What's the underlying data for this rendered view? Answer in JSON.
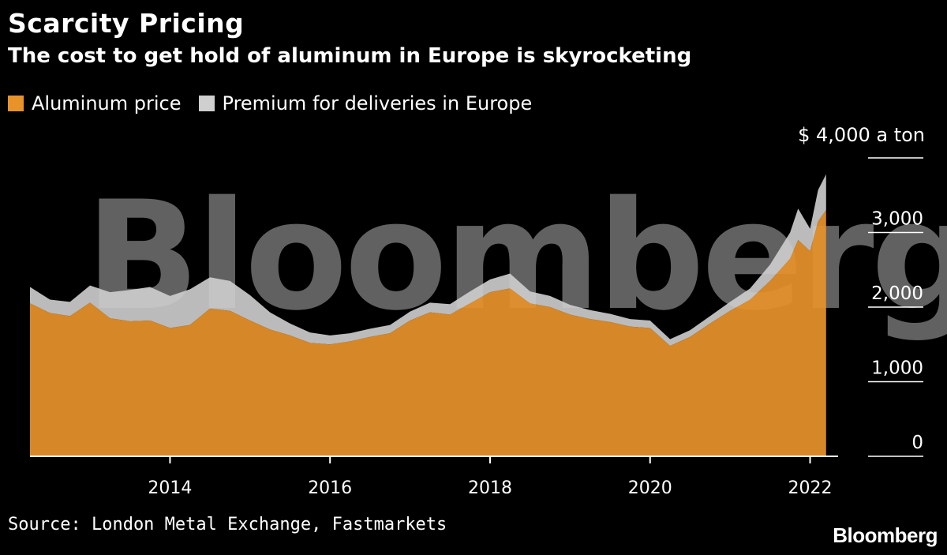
{
  "header": {
    "title": "Scarcity Pricing",
    "subtitle": "The cost to get hold of aluminum in Europe is skyrocketing"
  },
  "footer": {
    "source": "Source: London Metal Exchange, Fastmarkets",
    "logo": "Bloomberg"
  },
  "colors": {
    "background": "#000000",
    "aluminum": "#e8922a",
    "premium": "#cfcfcf",
    "axis": "#ffffff"
  },
  "chart_data": {
    "type": "area",
    "stacked": true,
    "watermark": "Bloomberg",
    "y_unit_label": "$ 4,000 a ton",
    "ylim": [
      0,
      4000
    ],
    "xlim": [
      2012.25,
      2022.35
    ],
    "y_ticks": [
      {
        "value": 0,
        "label": "0"
      },
      {
        "value": 1000,
        "label": "1,000"
      },
      {
        "value": 2000,
        "label": "2,000"
      },
      {
        "value": 3000,
        "label": "3,000"
      },
      {
        "value": 4000,
        "label": ""
      }
    ],
    "x_ticks": [
      {
        "value": 2014,
        "label": "2014"
      },
      {
        "value": 2016,
        "label": "2016"
      },
      {
        "value": 2018,
        "label": "2018"
      },
      {
        "value": 2020,
        "label": "2020"
      },
      {
        "value": 2022,
        "label": "2022"
      }
    ],
    "legend": [
      "Aluminum price",
      "Premium for deliveries in Europe"
    ],
    "legend_position": "top-left",
    "x": [
      2012.25,
      2012.5,
      2012.75,
      2013.0,
      2013.25,
      2013.5,
      2013.75,
      2014.0,
      2014.25,
      2014.5,
      2014.75,
      2015.0,
      2015.25,
      2015.5,
      2015.75,
      2016.0,
      2016.25,
      2016.5,
      2016.75,
      2017.0,
      2017.25,
      2017.5,
      2017.75,
      2018.0,
      2018.25,
      2018.5,
      2018.75,
      2019.0,
      2019.25,
      2019.5,
      2019.75,
      2020.0,
      2020.25,
      2020.5,
      2020.75,
      2021.0,
      2021.25,
      2021.5,
      2021.75,
      2021.85,
      2022.0,
      2022.1,
      2022.2
    ],
    "series": [
      {
        "name": "Aluminum price",
        "values": [
          2050,
          1920,
          1880,
          2060,
          1850,
          1810,
          1820,
          1720,
          1760,
          1980,
          1950,
          1820,
          1700,
          1620,
          1520,
          1500,
          1540,
          1600,
          1650,
          1820,
          1930,
          1900,
          2050,
          2200,
          2250,
          2050,
          2000,
          1900,
          1840,
          1800,
          1740,
          1720,
          1480,
          1600,
          1780,
          1950,
          2100,
          2350,
          2650,
          2900,
          2750,
          3150,
          3300
        ],
        "color": "#e8922a"
      },
      {
        "name": "Premium for deliveries in Europe",
        "values": [
          220,
          180,
          190,
          230,
          350,
          420,
          450,
          430,
          480,
          420,
          400,
          340,
          230,
          160,
          140,
          120,
          110,
          110,
          110,
          120,
          130,
          140,
          160,
          170,
          200,
          160,
          150,
          130,
          120,
          110,
          100,
          100,
          90,
          90,
          100,
          120,
          150,
          220,
          350,
          420,
          300,
          420,
          480
        ],
        "color": "#cfcfcf"
      }
    ]
  }
}
